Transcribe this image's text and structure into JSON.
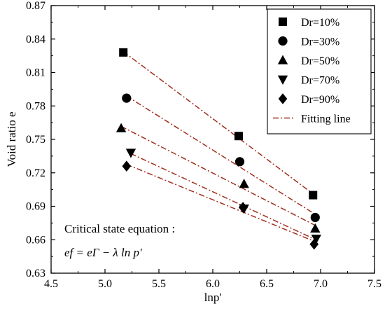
{
  "chart_data": {
    "type": "scatter",
    "title": "",
    "xlabel": "lnp'",
    "ylabel": "Void ratio e",
    "xlim": [
      4.5,
      7.5
    ],
    "ylim": [
      0.63,
      0.87
    ],
    "x_ticks": [
      "4.5",
      "5.0",
      "5.5",
      "6.0",
      "6.5",
      "7.0",
      "7.5"
    ],
    "y_ticks": [
      "0.63",
      "0.66",
      "0.69",
      "0.72",
      "0.75",
      "0.78",
      "0.81",
      "0.84",
      "0.87"
    ],
    "grid": false,
    "legend_position": "top-right",
    "fit_line_color": "#A0301E",
    "series": [
      {
        "name": "Dr=10%",
        "marker": "square",
        "points": [
          [
            5.17,
            0.828
          ],
          [
            6.24,
            0.753
          ],
          [
            6.93,
            0.7
          ]
        ]
      },
      {
        "name": "Dr=30%",
        "marker": "circle",
        "points": [
          [
            5.2,
            0.787
          ],
          [
            6.25,
            0.73
          ],
          [
            6.95,
            0.68
          ]
        ]
      },
      {
        "name": "Dr=50%",
        "marker": "triangle-up",
        "points": [
          [
            5.15,
            0.76
          ],
          [
            6.29,
            0.71
          ],
          [
            6.95,
            0.67
          ]
        ]
      },
      {
        "name": "Dr=70%",
        "marker": "triangle-down",
        "points": [
          [
            5.24,
            0.738
          ],
          [
            6.29,
            0.688
          ],
          [
            6.96,
            0.661
          ]
        ]
      },
      {
        "name": "Dr=90%",
        "marker": "diamond",
        "points": [
          [
            5.2,
            0.726
          ],
          [
            6.28,
            0.689
          ],
          [
            6.94,
            0.656
          ]
        ]
      }
    ],
    "legend_fit_label": "Fitting line",
    "annotation": {
      "line1": "Critical state equation :",
      "line2": "ef = eΓ − λ ln p'"
    }
  }
}
